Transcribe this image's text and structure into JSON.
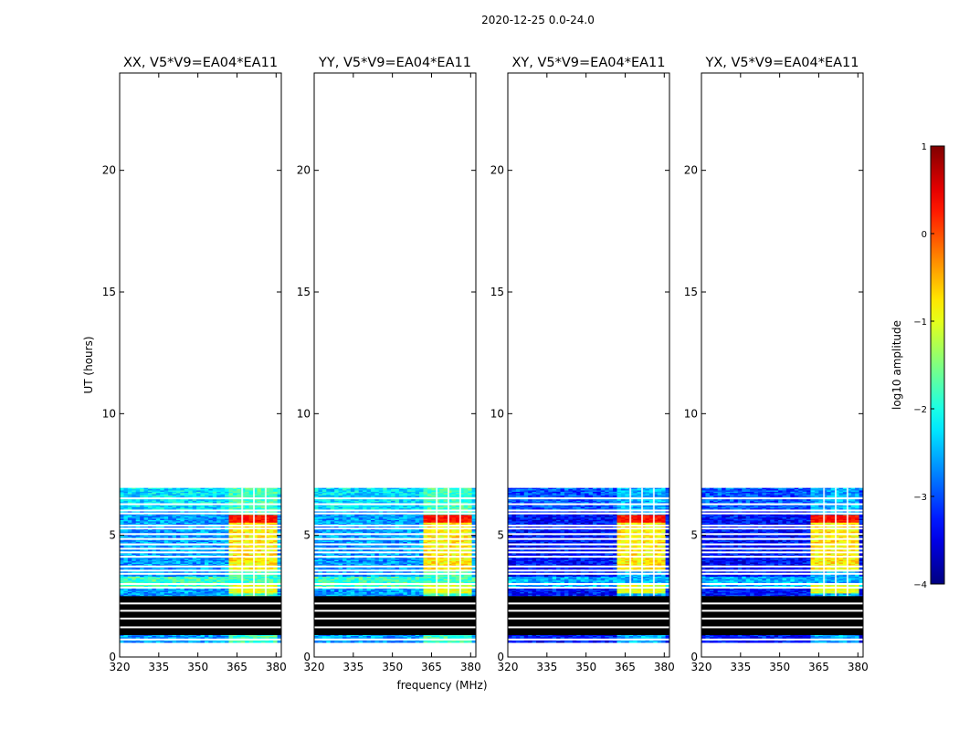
{
  "chart_data": {
    "type": "heatmap",
    "suptitle": "2020-12-25 0.0-24.0",
    "xlabel": "frequency (MHz)",
    "ylabel": "UT (hours)",
    "xlim": [
      320,
      382
    ],
    "ylim": [
      0,
      24
    ],
    "xticks": [
      320,
      335,
      350,
      365,
      380
    ],
    "yticks": [
      0,
      5,
      10,
      15,
      20
    ],
    "panels": [
      {
        "title": "XX, V5*V9=EA04*EA11",
        "pol": "XX",
        "background_log_amp": -2.6,
        "rfi_band_mhz": [
          362,
          380
        ],
        "rfi_peak_log_amp": 0.3
      },
      {
        "title": "YY, V5*V9=EA04*EA11",
        "pol": "YY",
        "background_log_amp": -2.6,
        "rfi_band_mhz": [
          362,
          380
        ],
        "rfi_peak_log_amp": 0.3
      },
      {
        "title": "XY, V5*V9=EA04*EA11",
        "pol": "XY",
        "background_log_amp": -3.3,
        "rfi_band_mhz": [
          362,
          380
        ],
        "rfi_peak_log_amp": 0.3
      },
      {
        "title": "YX, V5*V9=EA04*EA11",
        "pol": "YX",
        "background_log_amp": -3.3,
        "rfi_band_mhz": [
          362,
          380
        ],
        "rfi_peak_log_amp": 0.3
      }
    ],
    "data_extent_hours": [
      0.6,
      6.95
    ],
    "flagged_interval_hours": [
      0.9,
      2.5
    ],
    "colorbar": {
      "label": "log10 amplitude",
      "range": [
        -4,
        1
      ],
      "ticks": [
        1,
        0,
        -1,
        -2,
        -3,
        -4
      ],
      "tick_labels": [
        "1",
        "0",
        "−1",
        "−2",
        "−3",
        "−4"
      ],
      "colormap": "jet"
    }
  }
}
